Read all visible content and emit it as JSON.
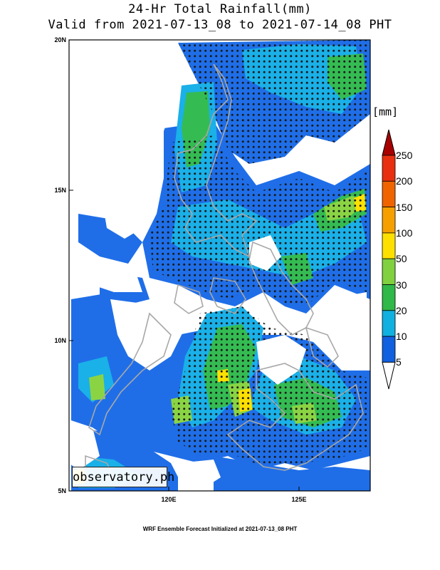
{
  "title": {
    "line1": "24-Hr Total Rainfall(mm)",
    "line2": "Valid from 2021-07-13_08 to 2021-07-14_08 PHT"
  },
  "axes": {
    "lat_labels": [
      "20N",
      "15N",
      "10N",
      "5N"
    ],
    "lon_labels": [
      "120E",
      "125E"
    ],
    "lat_range": [
      5,
      20
    ],
    "lon_range": [
      116.0,
      127.8
    ]
  },
  "colorbar": {
    "unit": "[mm]",
    "levels": [
      "250",
      "200",
      "150",
      "100",
      "50",
      "30",
      "20",
      "10",
      "5"
    ],
    "colors": [
      "#a80000",
      "#e83010",
      "#f06400",
      "#f5a000",
      "#fde000",
      "#80d040",
      "#30b848",
      "#10b0e0",
      "#1060e0"
    ]
  },
  "watermark": "observatory.ph",
  "footer": "WRF Ensemble Forecast Initialized at 2021-07-13_08 PHT"
}
